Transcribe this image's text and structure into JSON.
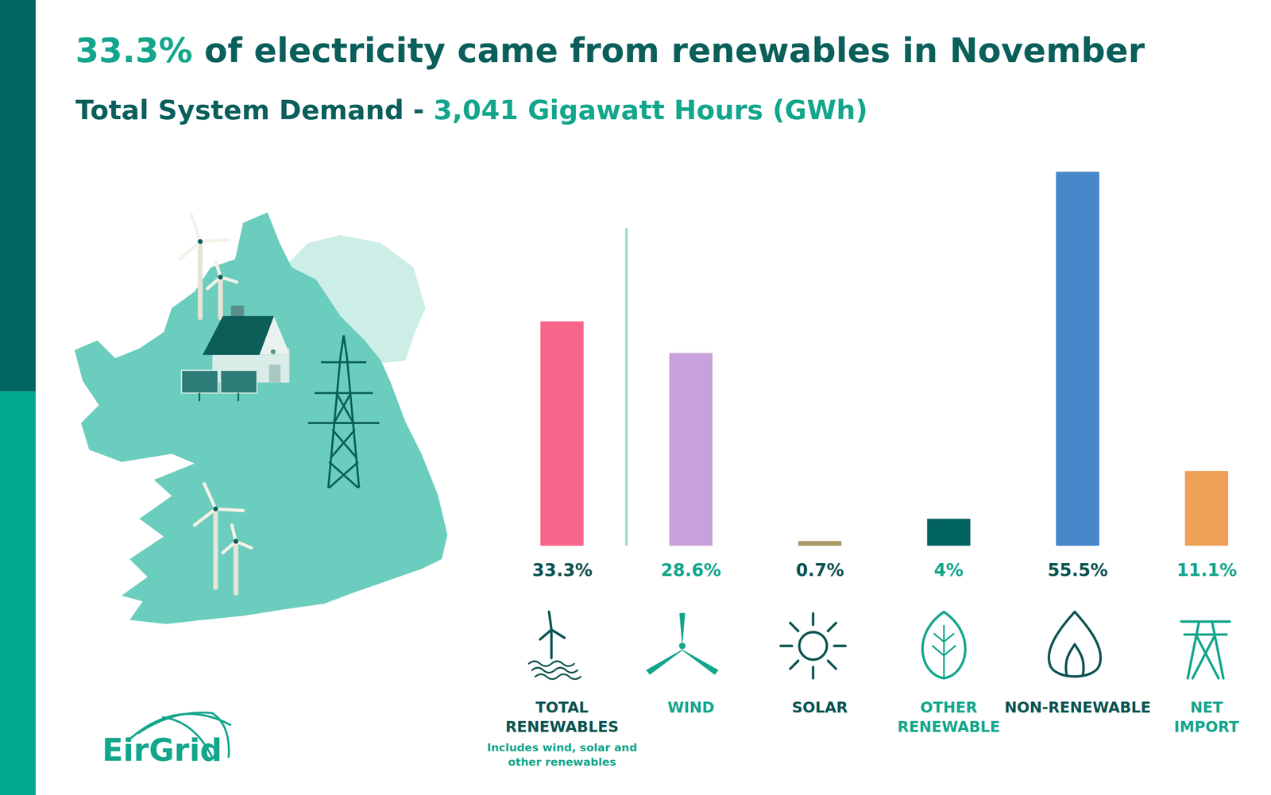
{
  "chart_data": {
    "type": "bar",
    "title": "33.3% of electricity came from renewables in November",
    "subtitle": "Total System Demand - 3,041 Gigawatt Hours (GWh)",
    "categories": [
      "TOTAL RENEWABLES",
      "WIND",
      "SOLAR",
      "OTHER RENEWABLE",
      "NON-RENEWABLE",
      "NET IMPORT"
    ],
    "values": [
      33.3,
      28.6,
      0.7,
      4,
      55.5,
      11.1
    ],
    "value_labels": [
      "33.3%",
      "28.6%",
      "0.7%",
      "4%",
      "55.5%",
      "11.1%"
    ],
    "colors": [
      "#f7658a",
      "#c6a1db",
      "#a89a66",
      "#00625f",
      "#4587c9",
      "#eca157"
    ],
    "ylim": [
      0,
      55.5
    ],
    "grid": false,
    "data_labels": true,
    "tick_labels": "x",
    "annotations": [
      {
        "category": "TOTAL RENEWABLES",
        "text": "Includes wind, solar and other renewables"
      }
    ]
  },
  "brand": "EirGrid"
}
